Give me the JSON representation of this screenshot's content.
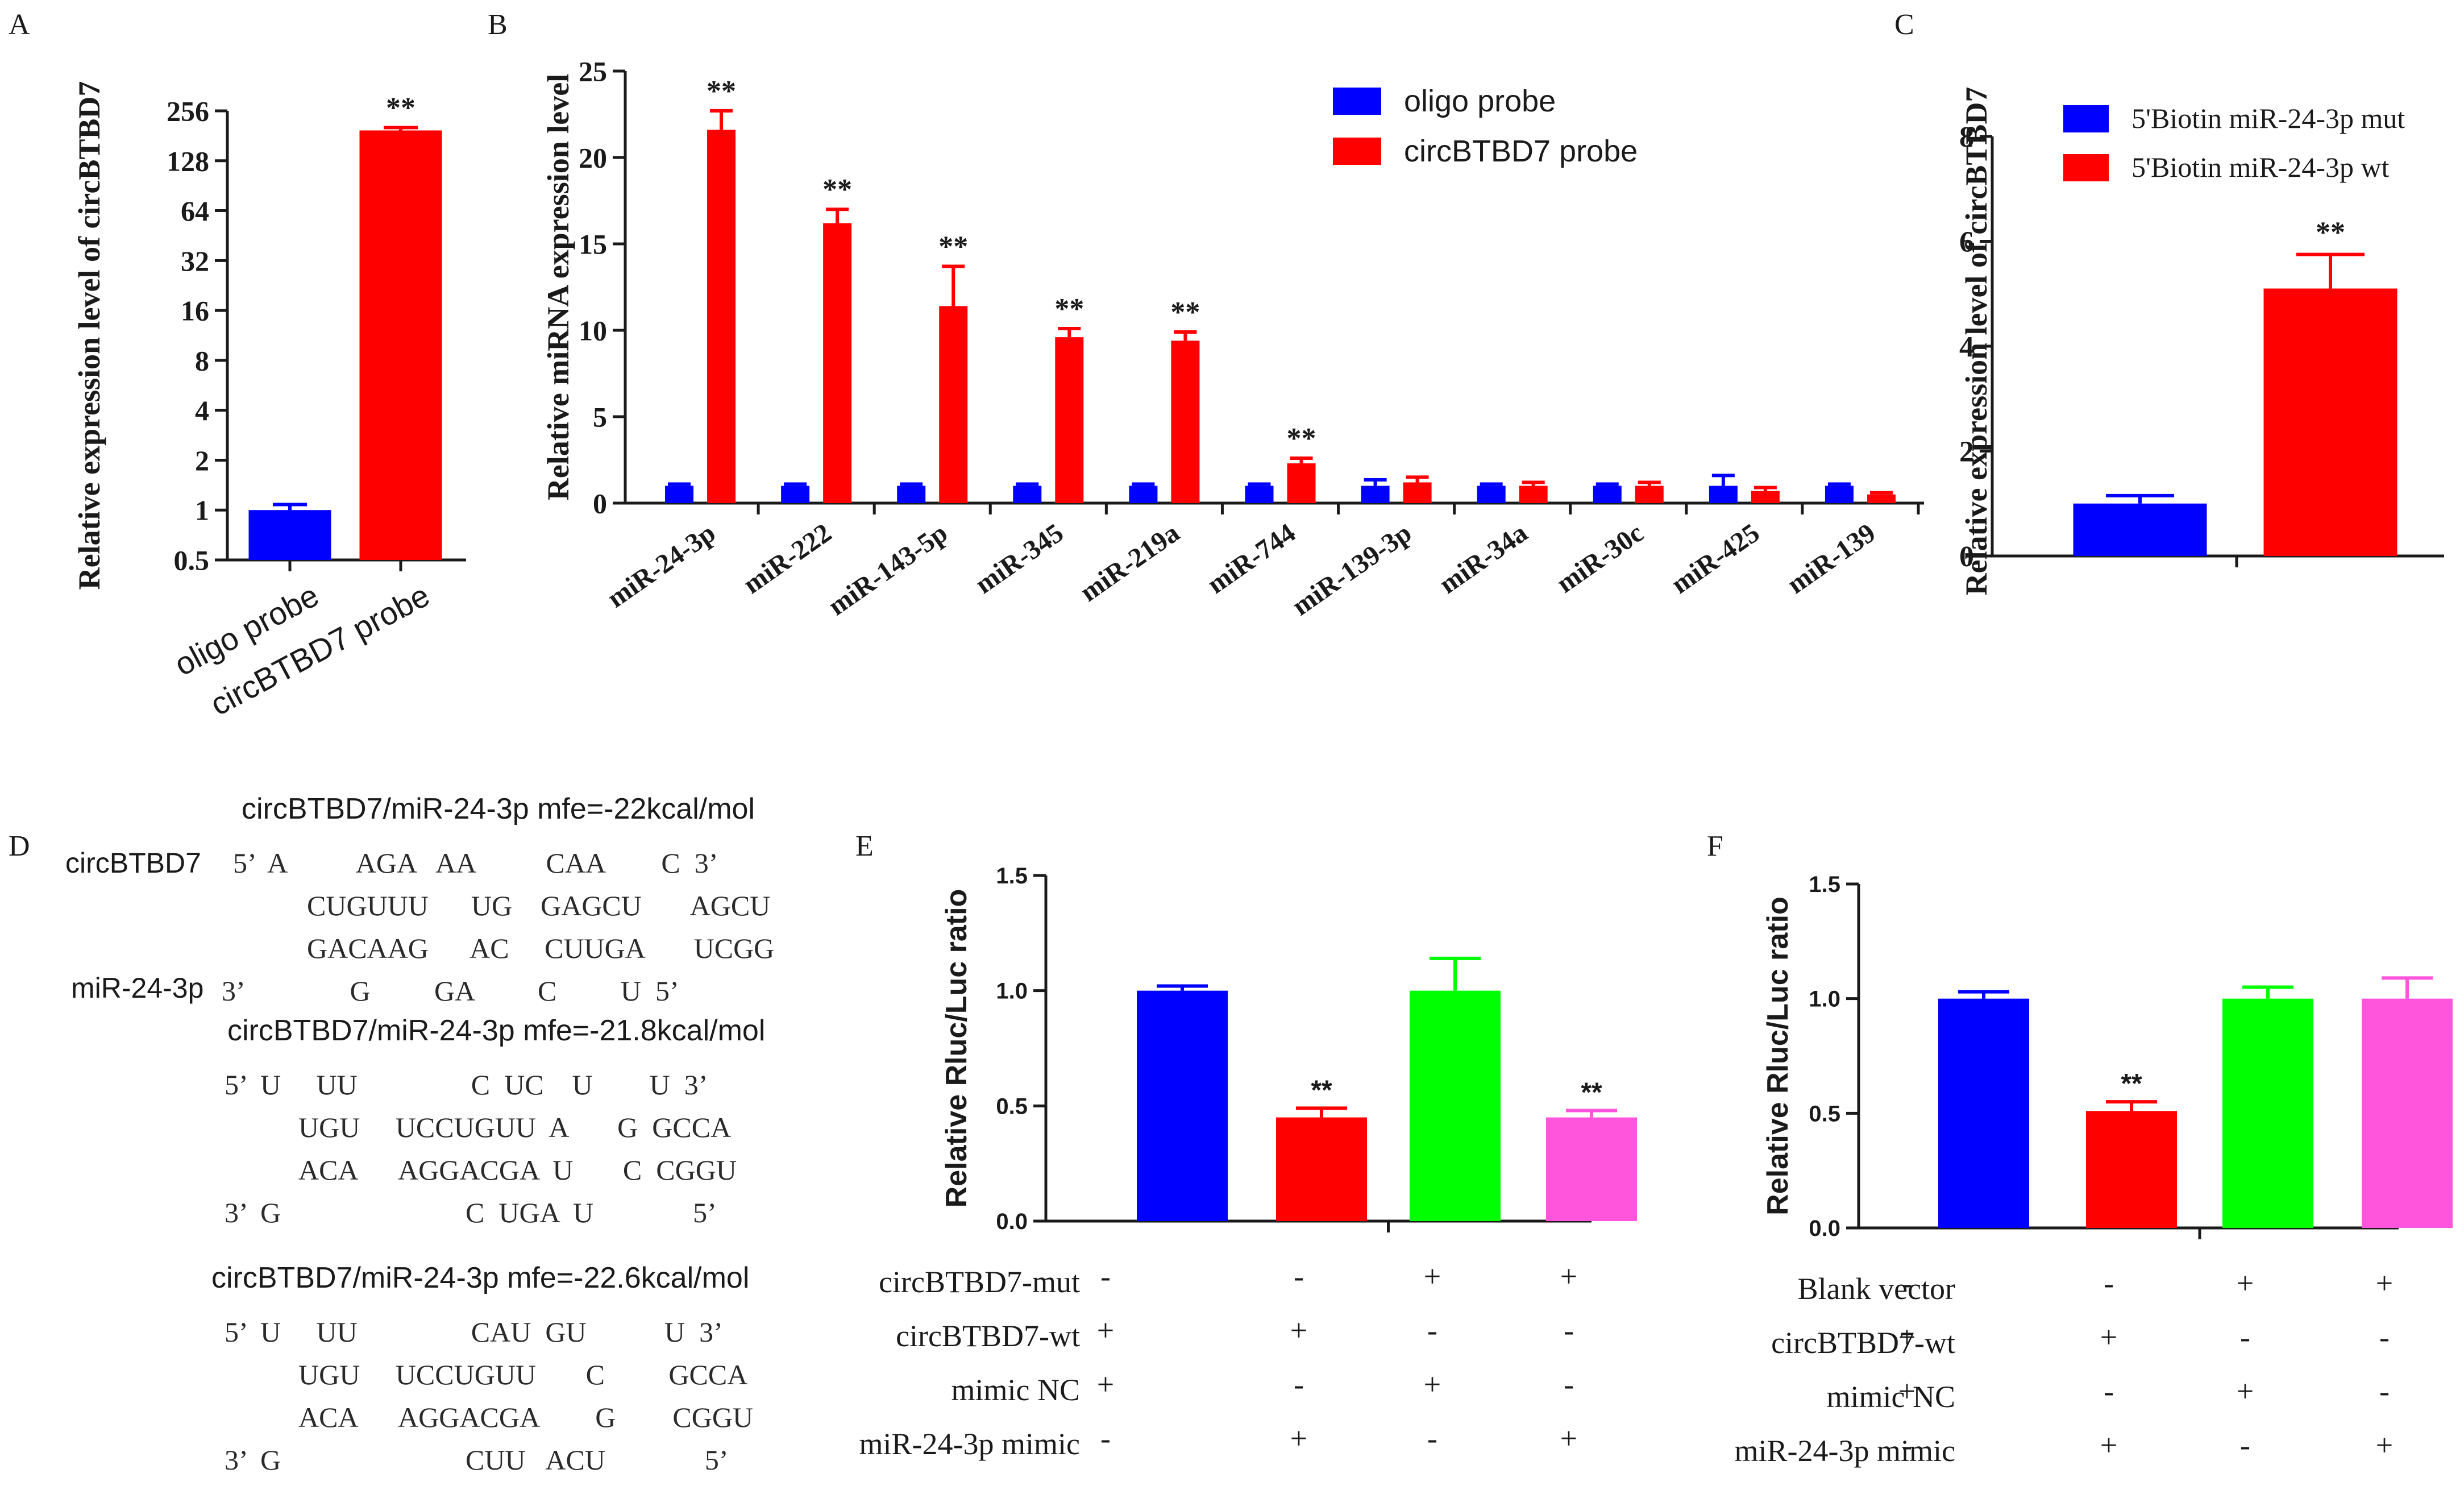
{
  "chart_data": [
    {
      "id": "A",
      "panel_label": "A",
      "type": "bar",
      "yscale": "log2",
      "ylabel": "Relative expression level of circBTBD7",
      "yticks": [
        "0.5",
        "1",
        "2",
        "4",
        "8",
        "16",
        "32",
        "64",
        "128",
        "256"
      ],
      "ylim": [
        0.5,
        256
      ],
      "categories": [
        "oligo probe",
        "circBTBD7 probe"
      ],
      "values": [
        1,
        195
      ],
      "errors": [
        0.08,
        8
      ],
      "colors": [
        "#0000FF",
        "#FF0000"
      ],
      "annotations": [
        "",
        "**"
      ]
    },
    {
      "id": "B",
      "panel_label": "B",
      "type": "bar",
      "ylabel": "Relative miRNA expression level",
      "yticks": [
        "0",
        "5",
        "10",
        "15",
        "20",
        "25"
      ],
      "ylim": [
        0,
        25
      ],
      "categories": [
        "miR-24-3p",
        "miR-222",
        "miR-143-5p",
        "miR-345",
        "miR-219a",
        "miR-744",
        "miR-139-3p",
        "miR-34a",
        "miR-30c",
        "miR-425",
        "miR-139"
      ],
      "series": [
        {
          "name": "oligo probe",
          "color": "#0000FF",
          "values": [
            1.0,
            1.0,
            1.0,
            1.0,
            1.0,
            1.0,
            1.0,
            1.0,
            1.0,
            1.0,
            1.0
          ],
          "errors": [
            0.1,
            0.1,
            0.1,
            0.1,
            0.1,
            0.1,
            0.35,
            0.1,
            0.1,
            0.6,
            0.1
          ]
        },
        {
          "name": "circBTBD7 probe",
          "color": "#FF0000",
          "values": [
            21.6,
            16.2,
            11.4,
            9.6,
            9.4,
            2.3,
            1.2,
            1.0,
            1.0,
            0.7,
            0.5
          ],
          "errors": [
            1.1,
            0.8,
            2.3,
            0.5,
            0.5,
            0.3,
            0.3,
            0.2,
            0.2,
            0.2,
            0.1
          ]
        }
      ],
      "annotations": [
        "**",
        "**",
        "**",
        "**",
        "**",
        "**",
        "",
        "",
        "",
        "",
        ""
      ],
      "legend": [
        "oligo probe",
        "circBTBD7 probe"
      ]
    },
    {
      "id": "C",
      "panel_label": "C",
      "type": "bar",
      "ylabel": "Relative expression level of circBTBD7",
      "yticks": [
        "0",
        "2",
        "4",
        "6",
        "8"
      ],
      "ylim": [
        0,
        8
      ],
      "categories": [
        "5'Biotin miR-24-3p mut",
        "5'Biotin miR-24-3p wt"
      ],
      "values": [
        1.0,
        5.1
      ],
      "errors": [
        0.15,
        0.65
      ],
      "colors": [
        "#0000FF",
        "#FF0000"
      ],
      "annotations": [
        "",
        "**"
      ],
      "legend": [
        "5'Biotin miR-24-3p mut",
        "5'Biotin miR-24-3p wt"
      ]
    },
    {
      "id": "E",
      "panel_label": "E",
      "type": "bar",
      "ylabel": "Relative Rluc/Luc ratio",
      "yticks": [
        "0.0",
        "0.5",
        "1.0",
        "1.5"
      ],
      "ylim": [
        0,
        1.5
      ],
      "values": [
        1.0,
        0.45,
        1.0,
        0.45
      ],
      "errors": [
        0.02,
        0.04,
        0.14,
        0.03
      ],
      "colors": [
        "#0000FF",
        "#FF0000",
        "#00FF00",
        "#FF55DD"
      ],
      "annotations": [
        "",
        "**",
        "",
        "**"
      ],
      "conditions": [
        {
          "label": "circBTBD7-mut",
          "marks": [
            "-",
            "-",
            "+",
            "+"
          ]
        },
        {
          "label": "circBTBD7-wt",
          "marks": [
            "+",
            "+",
            "-",
            "-"
          ]
        },
        {
          "label": "mimic NC",
          "marks": [
            "+",
            "-",
            "+",
            "-"
          ]
        },
        {
          "label": "miR-24-3p mimic",
          "marks": [
            "-",
            "+",
            "-",
            "+"
          ]
        }
      ]
    },
    {
      "id": "F",
      "panel_label": "F",
      "type": "bar",
      "ylabel": "Relative Rluc/Luc ratio",
      "yticks": [
        "0.0",
        "0.5",
        "1.0",
        "1.5"
      ],
      "ylim": [
        0,
        1.5
      ],
      "values": [
        1.0,
        0.51,
        1.0,
        1.0
      ],
      "errors": [
        0.03,
        0.04,
        0.05,
        0.09
      ],
      "colors": [
        "#0000FF",
        "#FF0000",
        "#00FF00",
        "#FF55DD"
      ],
      "annotations": [
        "",
        "**",
        "",
        ""
      ],
      "conditions": [
        {
          "label": "Blank vector",
          "marks": [
            "-",
            "-",
            "+",
            "+"
          ]
        },
        {
          "label": "circBTBD7-wt",
          "marks": [
            "+",
            "+",
            "-",
            "-"
          ]
        },
        {
          "label": "mimic NC",
          "marks": [
            "+",
            "-",
            "+",
            "-"
          ]
        },
        {
          "label": "miR-24-3p mimic",
          "marks": [
            "-",
            "+",
            "-",
            "+"
          ]
        }
      ]
    }
  ],
  "panel_d": {
    "label": "D",
    "blocks": [
      {
        "title": "circBTBD7/miR-24-3p mfe=-22kcal/mol",
        "name_top": "circBTBD7",
        "name_bottom": "miR-24-3p",
        "lines": [
          "5’  A          AGA   AA          CAA        C  3’",
          "CUGUUU      UG    GAGCU       AGCU",
          "GACAAG      AC     CUUGA       UCGG",
          "3’               G         GA         C         U  5’"
        ]
      },
      {
        "title": "circBTBD7/miR-24-3p mfe=-21.8kcal/mol",
        "name_top": "",
        "name_bottom": "",
        "lines": [
          "5’  U     UU                C  UC    U        U  3’",
          "UGU     UCCUGUU  A       G  GCCA",
          "ACA      AGGACGA  U       C  CGGU",
          "3’  G                          C  UGA  U              5’"
        ]
      },
      {
        "title": "circBTBD7/miR-24-3p mfe=-22.6kcal/mol",
        "name_top": "",
        "name_bottom": "",
        "lines": [
          "5’  U     UU                CAU  GU           U  3’",
          "UGU     UCCUGUU       C         GCCA",
          "ACA      AGGACGA        G        CGGU",
          "3’  G                          CUU   ACU              5’"
        ]
      }
    ]
  }
}
